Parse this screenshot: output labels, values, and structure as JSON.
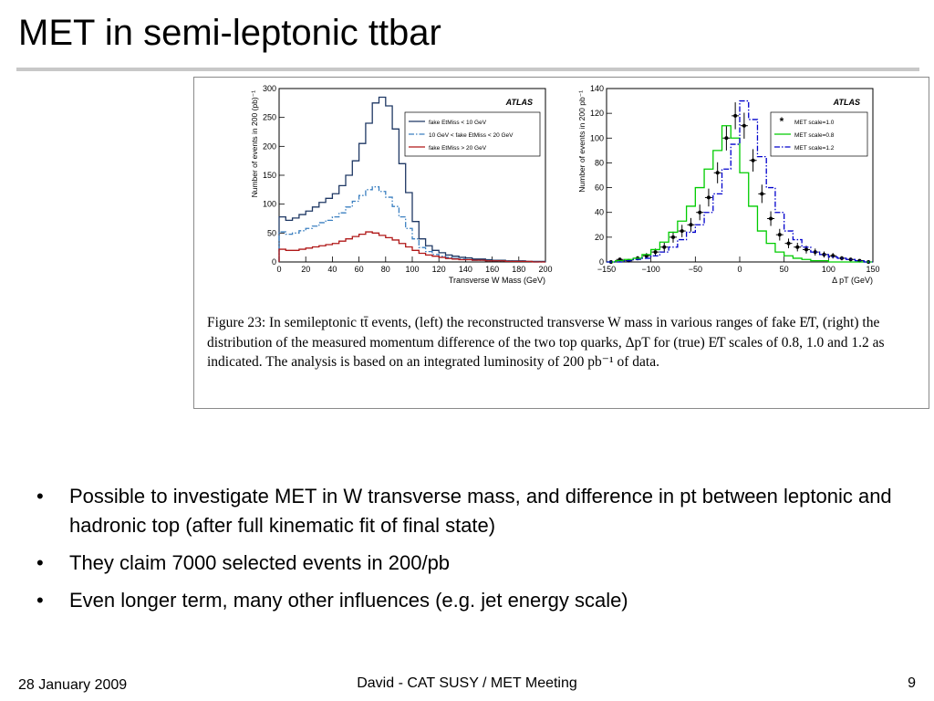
{
  "slide": {
    "title": "MET in semi-leptonic ttbar",
    "caption": "Figure 23: In semileptonic tt̄ events, (left) the reconstructed transverse W mass in various ranges of fake E̸T, (right) the distribution of the measured momentum difference of the two top quarks, ΔpT for (true) E̸T scales of 0.8, 1.0 and 1.2 as indicated. The analysis is based on an integrated luminosity of 200 pb⁻¹ of data.",
    "bullets": [
      "Possible to investigate MET in W transverse mass, and difference in pt between leptonic and hadronic top (after full kinematic fit of final state)",
      "They claim 7000 selected events in 200/pb",
      "Even longer term, many other influences (e.g. jet energy scale)"
    ],
    "footer": {
      "date": "28 January 2009",
      "center": "David - CAT SUSY / MET Meeting",
      "page": "9"
    }
  },
  "chart_data": [
    {
      "type": "line",
      "style": "step",
      "atlas_label": "ATLAS",
      "xlabel": "Transverse W Mass (GeV)",
      "ylabel": "Number of events in 200 (pb)⁻¹",
      "xlim": [
        0,
        200
      ],
      "ylim": [
        0,
        300
      ],
      "xticks": [
        0,
        20,
        40,
        60,
        80,
        100,
        120,
        140,
        160,
        180,
        200
      ],
      "yticks": [
        0,
        50,
        100,
        150,
        200,
        250,
        300
      ],
      "legend_position": "top-right",
      "bin_edges": [
        0,
        5,
        10,
        15,
        20,
        25,
        30,
        35,
        40,
        45,
        50,
        55,
        60,
        65,
        70,
        75,
        80,
        85,
        90,
        95,
        100,
        105,
        110,
        115,
        120,
        125,
        130,
        135,
        140,
        145,
        150,
        155,
        160,
        165,
        170,
        175,
        180,
        185,
        190,
        195,
        200
      ],
      "series": [
        {
          "name": "fake EtMiss < 10 GeV",
          "color": "#1f3864",
          "dash": "solid",
          "values": [
            78,
            72,
            76,
            82,
            88,
            95,
            103,
            110,
            118,
            132,
            150,
            175,
            205,
            240,
            275,
            285,
            270,
            230,
            170,
            120,
            70,
            40,
            28,
            20,
            16,
            12,
            10,
            8,
            7,
            5,
            5,
            4,
            3,
            3,
            2,
            2,
            2,
            1,
            1,
            1
          ]
        },
        {
          "name": "10 GeV < fake EtMiss < 20 GeV",
          "color": "#3a7fc0",
          "dash": "dashdot",
          "values": [
            52,
            48,
            50,
            54,
            58,
            62,
            68,
            72,
            78,
            85,
            95,
            105,
            115,
            125,
            130,
            122,
            112,
            96,
            78,
            58,
            40,
            25,
            18,
            13,
            10,
            8,
            6,
            5,
            4,
            3,
            3,
            2,
            2,
            2,
            1,
            1,
            1,
            1,
            0,
            0
          ]
        },
        {
          "name": "fake EtMiss > 20 GeV",
          "color": "#b01818",
          "dash": "solid",
          "values": [
            22,
            20,
            20,
            22,
            24,
            26,
            28,
            30,
            32,
            36,
            40,
            44,
            48,
            52,
            50,
            46,
            42,
            38,
            32,
            26,
            20,
            15,
            12,
            10,
            8,
            6,
            5,
            4,
            4,
            3,
            3,
            2,
            2,
            2,
            1,
            1,
            1,
            1,
            0,
            0
          ]
        }
      ]
    },
    {
      "type": "line",
      "style": "step",
      "atlas_label": "ATLAS",
      "xlabel": "Δ pT (GeV)",
      "ylabel": "Number of events in 200 pb⁻¹",
      "xlim": [
        -150,
        150
      ],
      "ylim": [
        0,
        140
      ],
      "xticks": [
        -150,
        -100,
        -50,
        0,
        50,
        100,
        150
      ],
      "yticks": [
        0,
        20,
        40,
        60,
        80,
        100,
        120,
        140
      ],
      "legend_position": "top-right",
      "bin_edges": [
        -150,
        -140,
        -130,
        -120,
        -110,
        -100,
        -90,
        -80,
        -70,
        -60,
        -50,
        -40,
        -30,
        -20,
        -10,
        0,
        10,
        20,
        30,
        40,
        50,
        60,
        70,
        80,
        90,
        100,
        110,
        120,
        130,
        140,
        150
      ],
      "series": [
        {
          "name": "MET scale=1.0",
          "color": "#000000",
          "marker": "star",
          "bin_centers": [
            -145,
            -135,
            -125,
            -115,
            -105,
            -95,
            -85,
            -75,
            -65,
            -55,
            -45,
            -35,
            -25,
            -15,
            -5,
            5,
            15,
            25,
            35,
            45,
            55,
            65,
            75,
            85,
            95,
            105,
            115,
            125,
            135,
            145
          ],
          "values": [
            0,
            2,
            1,
            3,
            5,
            8,
            12,
            20,
            25,
            30,
            40,
            52,
            72,
            100,
            118,
            110,
            82,
            55,
            35,
            22,
            15,
            12,
            10,
            8,
            6,
            5,
            3,
            2,
            1,
            0
          ]
        },
        {
          "name": "MET scale=0.8",
          "color": "#00cc00",
          "dash": "solid",
          "values": [
            0,
            1,
            2,
            3,
            6,
            10,
            16,
            24,
            33,
            45,
            60,
            75,
            90,
            110,
            100,
            72,
            45,
            25,
            15,
            8,
            5,
            3,
            2,
            1,
            1,
            0,
            0,
            0,
            0,
            0
          ]
        },
        {
          "name": "MET scale=1.2",
          "color": "#0000cc",
          "dash": "dashdot",
          "values": [
            0,
            0,
            1,
            2,
            3,
            5,
            8,
            12,
            18,
            24,
            30,
            40,
            55,
            75,
            95,
            130,
            115,
            85,
            60,
            40,
            25,
            18,
            12,
            8,
            6,
            4,
            3,
            2,
            1,
            0
          ]
        }
      ]
    }
  ]
}
